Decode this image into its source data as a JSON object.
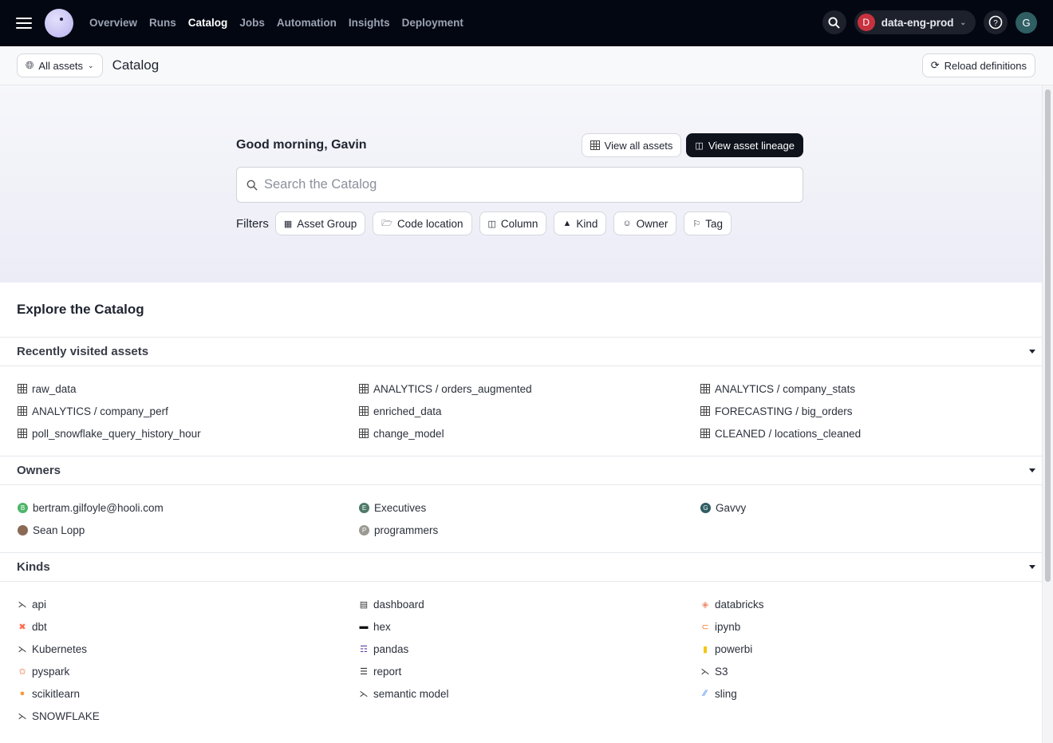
{
  "nav": {
    "items": [
      "Overview",
      "Runs",
      "Catalog",
      "Jobs",
      "Automation",
      "Insights",
      "Deployment"
    ],
    "active": "Catalog",
    "deployment": "data-eng-prod",
    "deployment_initial": "D",
    "user_initial": "G"
  },
  "subbar": {
    "scope": "All assets",
    "title": "Catalog",
    "reload": "Reload definitions"
  },
  "hero": {
    "greeting": "Good morning, Gavin",
    "view_all": "View all assets",
    "view_lineage": "View asset lineage",
    "search_placeholder": "Search the Catalog",
    "filters_label": "Filters",
    "filters": [
      "Asset Group",
      "Code location",
      "Column",
      "Kind",
      "Owner",
      "Tag"
    ]
  },
  "explore_title": "Explore the Catalog",
  "recent": {
    "title": "Recently visited assets",
    "items": [
      "raw_data",
      "ANALYTICS / orders_augmented",
      "ANALYTICS / company_stats",
      "ANALYTICS / company_perf",
      "enriched_data",
      "FORECASTING / big_orders",
      "poll_snowflake_query_history_hour",
      "change_model",
      "CLEANED / locations_cleaned"
    ]
  },
  "owners": {
    "title": "Owners",
    "items": [
      {
        "name": "bertram.gilfoyle@hooli.com",
        "initial": "B",
        "color": "#4fb56a"
      },
      {
        "name": "Executives",
        "initial": "E",
        "color": "#4f7a68"
      },
      {
        "name": "Gavvy",
        "initial": "G",
        "color": "#2f5e63"
      },
      {
        "name": "Sean Lopp",
        "initial": "",
        "color": "#8a6a55"
      },
      {
        "name": "programmers",
        "initial": "P",
        "color": "#9a9a92"
      }
    ]
  },
  "kinds": {
    "title": "Kinds",
    "items": [
      {
        "name": "api",
        "icon": "kind-icon",
        "color": "#333"
      },
      {
        "name": "dashboard",
        "icon": "dashboard-icon",
        "color": "#333"
      },
      {
        "name": "databricks",
        "icon": "databricks-icon",
        "color": "#f08a6c"
      },
      {
        "name": "dbt",
        "icon": "dbt-icon",
        "color": "#ff694a"
      },
      {
        "name": "hex",
        "icon": "hex-icon",
        "color": "#111"
      },
      {
        "name": "ipynb",
        "icon": "jupyter-icon",
        "color": "#f37726"
      },
      {
        "name": "Kubernetes",
        "icon": "kind-icon",
        "color": "#333"
      },
      {
        "name": "pandas",
        "icon": "pandas-icon",
        "color": "#5b3fa0"
      },
      {
        "name": "powerbi",
        "icon": "powerbi-icon",
        "color": "#f2c811"
      },
      {
        "name": "pyspark",
        "icon": "spark-icon",
        "color": "#e25a1c"
      },
      {
        "name": "report",
        "icon": "report-icon",
        "color": "#333"
      },
      {
        "name": "S3",
        "icon": "kind-icon",
        "color": "#333"
      },
      {
        "name": "scikitlearn",
        "icon": "scikitlearn-icon",
        "color": "#f89939"
      },
      {
        "name": "semantic model",
        "icon": "kind-icon",
        "color": "#333"
      },
      {
        "name": "sling",
        "icon": "sling-icon",
        "color": "#3b7ff0"
      },
      {
        "name": "SNOWFLAKE",
        "icon": "kind-icon",
        "color": "#333"
      }
    ]
  }
}
